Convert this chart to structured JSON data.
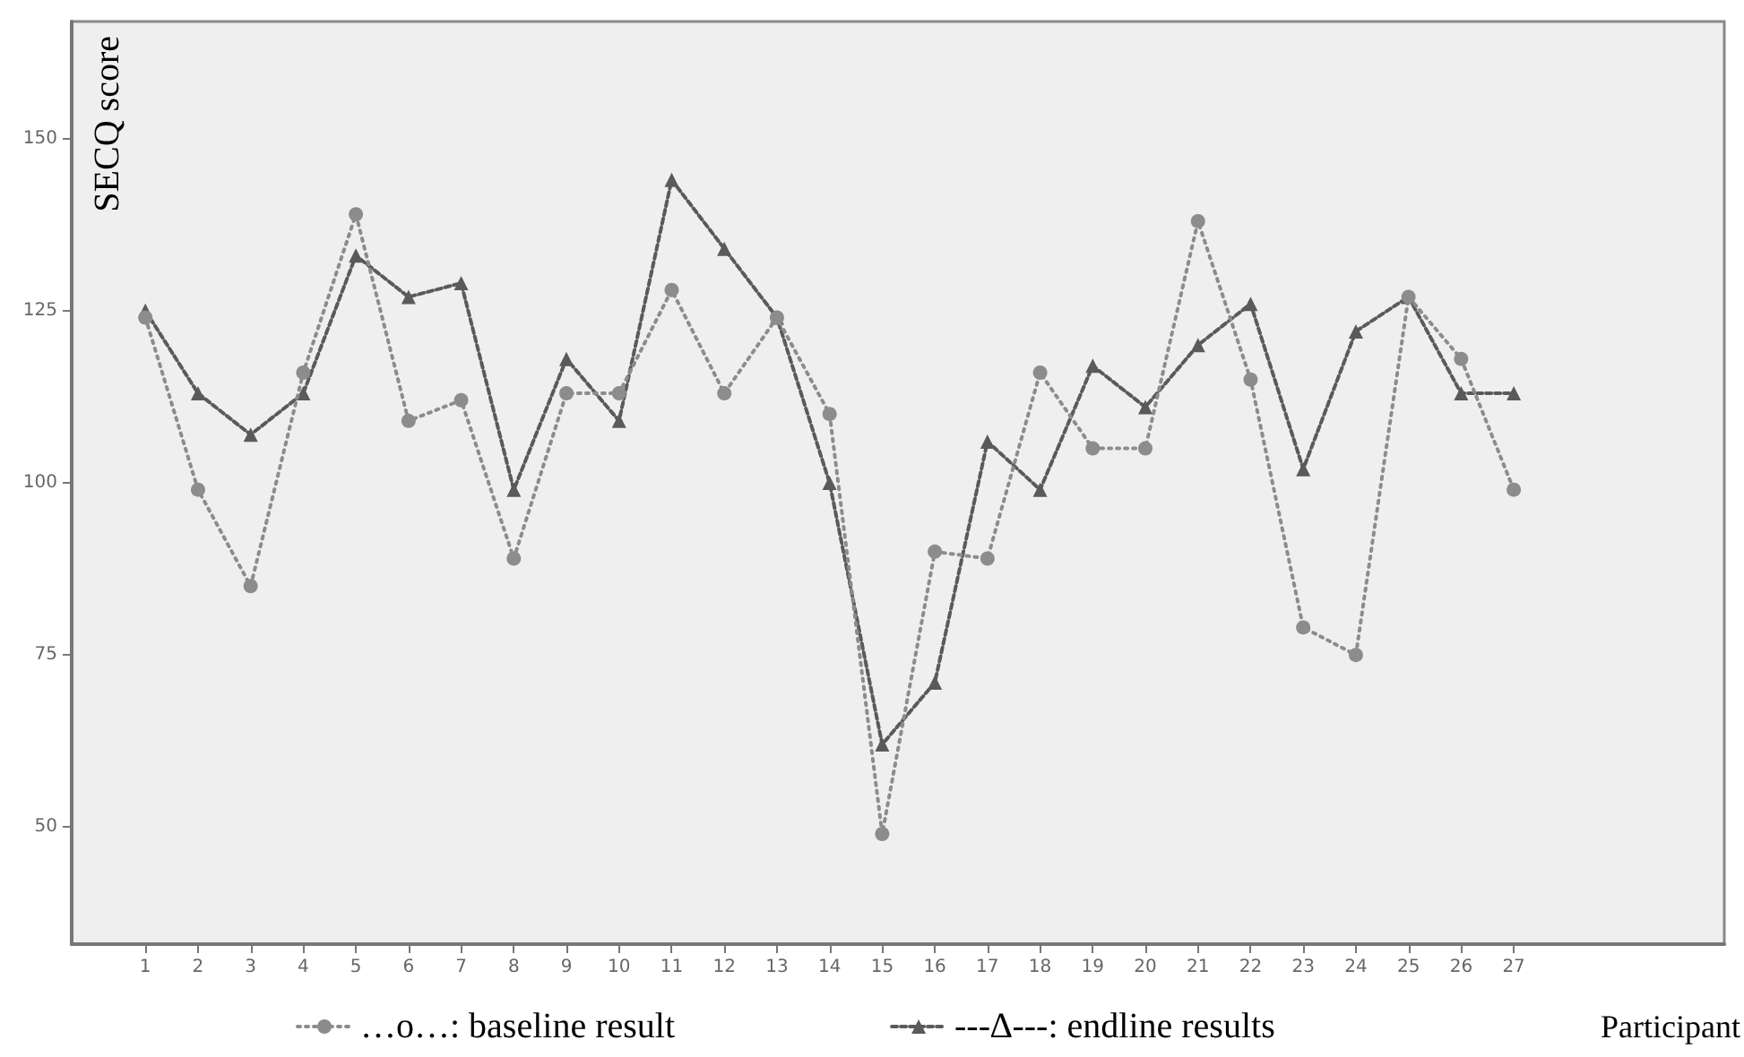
{
  "chart_data": {
    "type": "line",
    "ylabel": "SECQ score",
    "xlabel": "Participant",
    "x": [
      1,
      2,
      3,
      4,
      5,
      6,
      7,
      8,
      9,
      10,
      11,
      12,
      13,
      14,
      15,
      16,
      17,
      18,
      19,
      20,
      21,
      22,
      23,
      24,
      25,
      26,
      27
    ],
    "xlim": [
      -0.4,
      31
    ],
    "xticks": [
      1,
      2,
      3,
      4,
      5,
      6,
      7,
      8,
      9,
      10,
      11,
      12,
      13,
      14,
      15,
      16,
      17,
      18,
      19,
      20,
      21,
      22,
      23,
      24,
      25,
      26,
      27
    ],
    "ylim": [
      33,
      167
    ],
    "yticks": [
      50,
      75,
      100,
      125,
      150
    ],
    "grid": false,
    "legend": "bottom",
    "series": [
      {
        "name": "…o…: baseline result",
        "color": "#8c8c8c",
        "marker": "circle",
        "line_style": "dotted",
        "values": [
          124,
          99,
          85,
          116,
          139,
          109,
          112,
          89,
          113,
          113,
          128,
          113,
          124,
          110,
          49,
          90,
          89,
          116,
          105,
          105,
          138,
          115,
          79,
          75,
          127,
          118,
          99
        ]
      },
      {
        "name": "---∆---: endline results",
        "color": "#5a5a5a",
        "marker": "triangle",
        "line_style": "dashed",
        "values": [
          125,
          113,
          107,
          113,
          133,
          127,
          129,
          99,
          118,
          109,
          144,
          134,
          124,
          100,
          62,
          71,
          106,
          99,
          117,
          111,
          120,
          126,
          102,
          122,
          127,
          113,
          113
        ]
      }
    ]
  }
}
